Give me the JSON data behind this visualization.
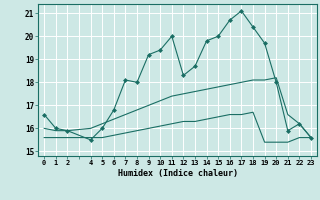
{
  "xlabel": "Humidex (Indice chaleur)",
  "background_color": "#cde8e5",
  "grid_color": "#ffffff",
  "line_color": "#1a6e64",
  "xlim": [
    -0.5,
    23.5
  ],
  "ylim": [
    14.8,
    21.4
  ],
  "yticks": [
    15,
    16,
    17,
    18,
    19,
    20,
    21
  ],
  "xticks": [
    0,
    1,
    2,
    4,
    5,
    6,
    7,
    8,
    9,
    10,
    11,
    12,
    13,
    14,
    15,
    16,
    17,
    18,
    19,
    20,
    21,
    22,
    23
  ],
  "line1_x": [
    0,
    1,
    2,
    4,
    5,
    6,
    7,
    8,
    9,
    10,
    11,
    12,
    13,
    14,
    15,
    16,
    17,
    18,
    19,
    20,
    21,
    22,
    23
  ],
  "line1_y": [
    16.6,
    16.0,
    15.9,
    15.5,
    16.0,
    16.8,
    18.1,
    18.0,
    19.2,
    19.4,
    20.0,
    18.3,
    18.7,
    19.8,
    20.0,
    20.7,
    21.1,
    20.4,
    19.7,
    18.0,
    15.9,
    16.2,
    15.6
  ],
  "line2_x": [
    0,
    1,
    2,
    4,
    5,
    6,
    7,
    8,
    9,
    10,
    11,
    12,
    13,
    14,
    15,
    16,
    17,
    18,
    19,
    20,
    21,
    22,
    23
  ],
  "line2_y": [
    16.0,
    15.9,
    15.9,
    16.0,
    16.2,
    16.4,
    16.6,
    16.8,
    17.0,
    17.2,
    17.4,
    17.5,
    17.6,
    17.7,
    17.8,
    17.9,
    18.0,
    18.1,
    18.1,
    18.2,
    16.6,
    16.2,
    15.6
  ],
  "line3_x": [
    0,
    1,
    2,
    4,
    5,
    6,
    7,
    8,
    9,
    10,
    11,
    12,
    13,
    14,
    15,
    16,
    17,
    18,
    19,
    20,
    21,
    22,
    23
  ],
  "line3_y": [
    15.6,
    15.6,
    15.6,
    15.6,
    15.6,
    15.7,
    15.8,
    15.9,
    16.0,
    16.1,
    16.2,
    16.3,
    16.3,
    16.4,
    16.5,
    16.6,
    16.6,
    16.7,
    15.4,
    15.4,
    15.4,
    15.6,
    15.6
  ]
}
